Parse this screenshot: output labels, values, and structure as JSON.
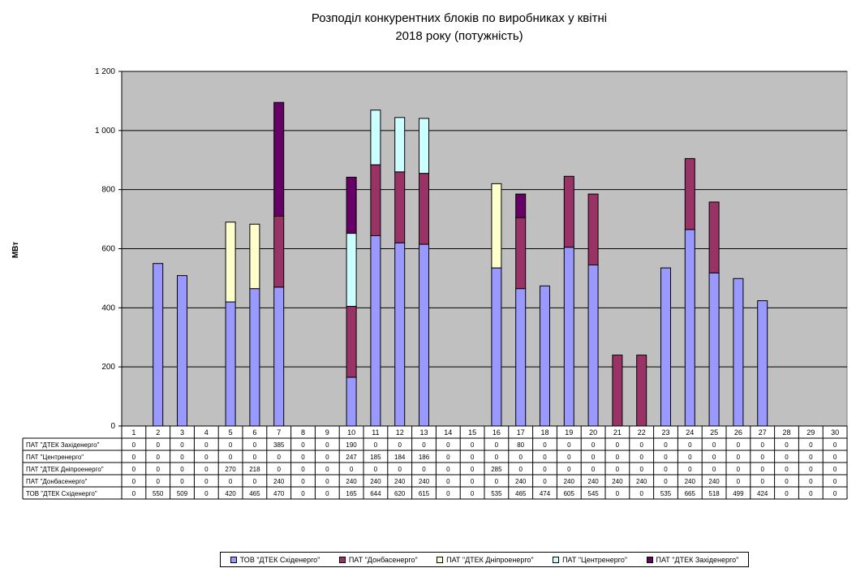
{
  "title": [
    "Розподіл конкурентних  блоків по виробниках  у квітні",
    "2018 року  (потужність)"
  ],
  "chart_data": {
    "type": "bar",
    "stacked": true,
    "ylabel": "МВт",
    "ylim": [
      0,
      1200
    ],
    "yticks": [
      "0",
      "200",
      "400",
      "600",
      "800",
      "1 000",
      "1 200"
    ],
    "grid": true,
    "plot_background": "#c0c0c0",
    "legend_position": "bottom",
    "categories": [
      "1",
      "2",
      "3",
      "4",
      "5",
      "6",
      "7",
      "8",
      "9",
      "10",
      "11",
      "12",
      "13",
      "14",
      "15",
      "16",
      "17",
      "18",
      "19",
      "20",
      "21",
      "22",
      "23",
      "24",
      "25",
      "26",
      "27",
      "28",
      "29",
      "30"
    ],
    "series": [
      {
        "name": "ТОВ \"ДТЕК Східенерго\"",
        "color": "#9999ff",
        "values": [
          0,
          550,
          509,
          0,
          420,
          465,
          470,
          0,
          0,
          165,
          644,
          620,
          615,
          0,
          0,
          535,
          465,
          474,
          605,
          545,
          0,
          0,
          535,
          665,
          518,
          499,
          424,
          0,
          0,
          0
        ]
      },
      {
        "name": "ПАТ \"Донбасенерго\"",
        "color": "#993366",
        "values": [
          0,
          0,
          0,
          0,
          0,
          0,
          240,
          0,
          0,
          240,
          240,
          240,
          240,
          0,
          0,
          0,
          240,
          0,
          240,
          240,
          240,
          240,
          0,
          240,
          240,
          0,
          0,
          0,
          0,
          0
        ]
      },
      {
        "name": "ПАТ \"ДТЕК Дніпроенерго\"",
        "color": "#ffffcc",
        "values": [
          0,
          0,
          0,
          0,
          270,
          218,
          0,
          0,
          0,
          0,
          0,
          0,
          0,
          0,
          0,
          285,
          0,
          0,
          0,
          0,
          0,
          0,
          0,
          0,
          0,
          0,
          0,
          0,
          0,
          0
        ]
      },
      {
        "name": "ПАТ \"Центренерго\"",
        "color": "#ccffff",
        "values": [
          0,
          0,
          0,
          0,
          0,
          0,
          0,
          0,
          0,
          247,
          185,
          184,
          186,
          0,
          0,
          0,
          0,
          0,
          0,
          0,
          0,
          0,
          0,
          0,
          0,
          0,
          0,
          0,
          0,
          0
        ]
      },
      {
        "name": "ПАТ \"ДТЕК Західенерго\"",
        "color": "#660066",
        "values": [
          0,
          0,
          0,
          0,
          0,
          0,
          385,
          0,
          0,
          190,
          0,
          0,
          0,
          0,
          0,
          0,
          80,
          0,
          0,
          0,
          0,
          0,
          0,
          0,
          0,
          0,
          0,
          0,
          0,
          0
        ]
      }
    ],
    "table_row_order": [
      4,
      3,
      2,
      1,
      0
    ],
    "legend_order": [
      0,
      1,
      2,
      3,
      4
    ]
  }
}
